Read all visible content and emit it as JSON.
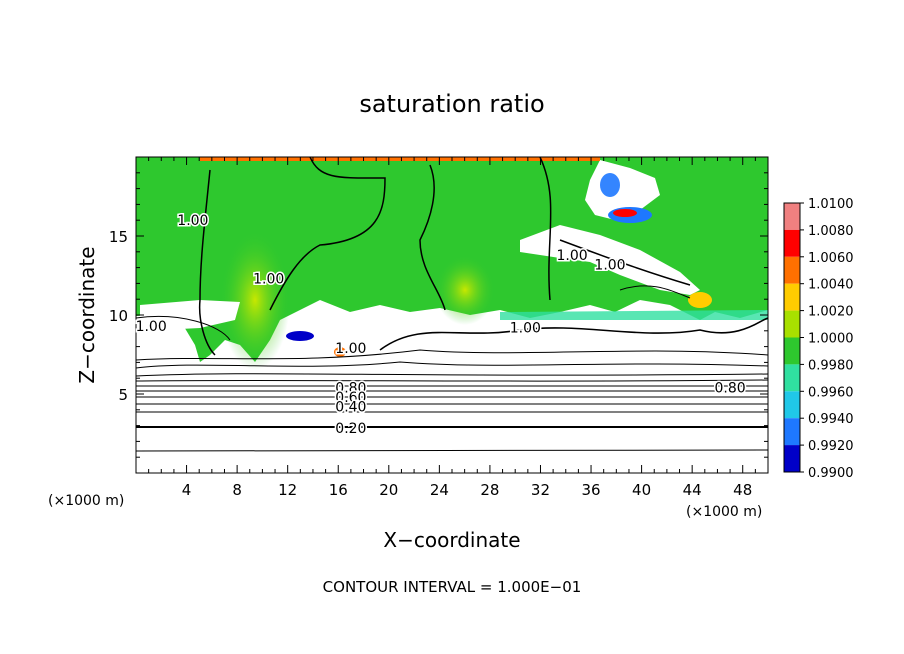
{
  "chart_data": {
    "type": "heatmap",
    "title": "saturation ratio",
    "xlabel": "X−coordinate",
    "ylabel": "Z−coordinate",
    "x_unit_left": "(×1000 m)",
    "x_unit_right": "(×1000 m)",
    "footer": "CONTOUR INTERVAL = 1.000E−01",
    "xlim": [
      0,
      50
    ],
    "ylim": [
      0,
      20
    ],
    "x_ticks": [
      "4",
      "8",
      "12",
      "16",
      "20",
      "24",
      "28",
      "32",
      "36",
      "40",
      "44",
      "48"
    ],
    "x_tick_values": [
      4,
      8,
      12,
      16,
      20,
      24,
      28,
      32,
      36,
      40,
      44,
      48
    ],
    "y_ticks": [
      "5",
      "10",
      "15"
    ],
    "y_tick_values": [
      5,
      10,
      15
    ],
    "colorbar": {
      "labels": [
        "1.0100",
        "1.0080",
        "1.0060",
        "1.0040",
        "1.0020",
        "1.0000",
        "0.9980",
        "0.9960",
        "0.9940",
        "0.9920",
        "0.9900"
      ],
      "colors": [
        "#f08080",
        "#ff0000",
        "#ff7000",
        "#ffcc00",
        "#a8e000",
        "#2ec82e",
        "#30e0a0",
        "#20c8e8",
        "#1e78ff",
        "#0000c8",
        "#7a0090"
      ]
    },
    "contour_labels": [
      {
        "text": "1.00",
        "x": 4.5,
        "y": 16.0
      },
      {
        "text": "1.00",
        "x": 10.5,
        "y": 12.3
      },
      {
        "text": "1.00",
        "x": 1.2,
        "y": 9.3
      },
      {
        "text": "1.00",
        "x": 30.8,
        "y": 9.2
      },
      {
        "text": "1.00",
        "x": 34.5,
        "y": 13.8
      },
      {
        "text": "1.00",
        "x": 37.5,
        "y": 13.2
      },
      {
        "text": "1.00",
        "x": 17.0,
        "y": 7.9
      },
      {
        "text": "0.80",
        "x": 17.0,
        "y": 5.4
      },
      {
        "text": "0.60",
        "x": 17.0,
        "y": 4.8
      },
      {
        "text": "0.40",
        "x": 17.0,
        "y": 4.2
      },
      {
        "text": "0.20",
        "x": 17.0,
        "y": 2.85
      },
      {
        "text": "0.80",
        "x": 47.0,
        "y": 5.4
      }
    ]
  }
}
